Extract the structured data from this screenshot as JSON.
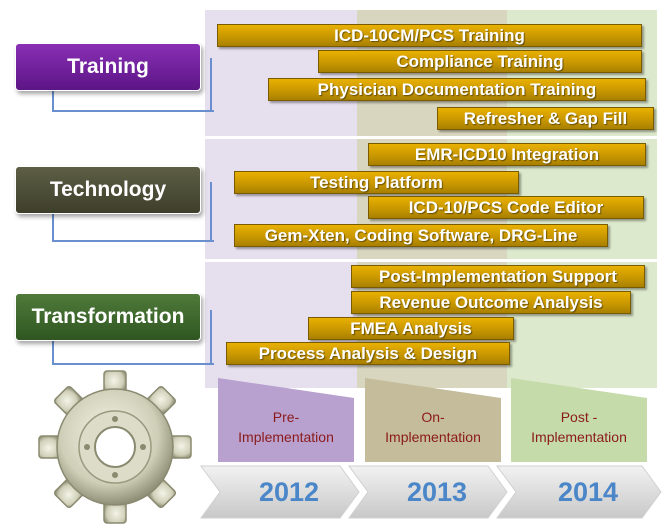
{
  "categories": {
    "training": "Training",
    "technology": "Technology",
    "transformation": "Transformation"
  },
  "training_bars": [
    "ICD-10CM/PCS Training",
    "Compliance Training",
    "Physician Documentation Training",
    "Refresher & Gap Fill"
  ],
  "technology_bars": [
    "EMR-ICD10 Integration",
    "Testing Platform",
    "ICD-10/PCS Code Editor",
    "Gem-Xten, Coding Software, DRG-Line"
  ],
  "transformation_bars": [
    "Post-Implementation Support",
    "Revenue Outcome Analysis",
    "FMEA Analysis",
    "Process Analysis & Design"
  ],
  "phases": {
    "pre": {
      "line1": "Pre-",
      "line2": "Implementation",
      "color": "#8b1a1a",
      "fill": "#b8a0cf"
    },
    "on": {
      "line1": "On-",
      "line2": "Implementation",
      "color": "#8b1a1a",
      "fill": "#c4bc9a"
    },
    "post": {
      "line1": "Post -",
      "line2": "Implementation",
      "color": "#8b1a1a",
      "fill": "#c5dcaa"
    }
  },
  "years": [
    "2012",
    "2013",
    "2014"
  ],
  "icons": {
    "gear": "gear-icon"
  }
}
